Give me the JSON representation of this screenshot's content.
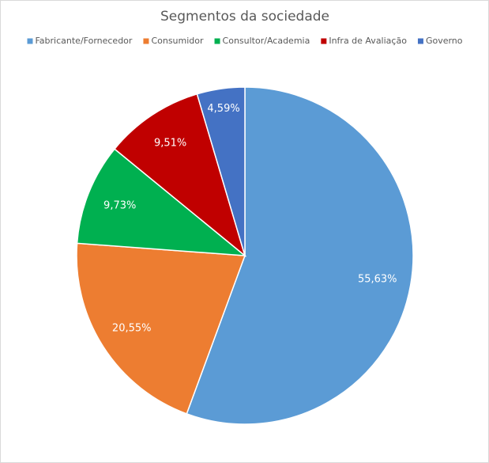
{
  "chart_data": {
    "type": "pie",
    "title": "Segmentos da sociedade",
    "categories": [
      "Fabricante/Fornecedor",
      "Consumidor",
      "Consultor/Academia",
      "Infra de Avaliação",
      "Governo"
    ],
    "values": [
      55.63,
      20.55,
      9.73,
      9.51,
      4.59
    ],
    "value_labels": [
      "55,63%",
      "20,55%",
      "9,73%",
      "9,51%",
      "4,59%"
    ],
    "colors": [
      "#5b9bd5",
      "#ed7d31",
      "#00b050",
      "#c00000",
      "#4472c4"
    ],
    "legend": "top"
  }
}
